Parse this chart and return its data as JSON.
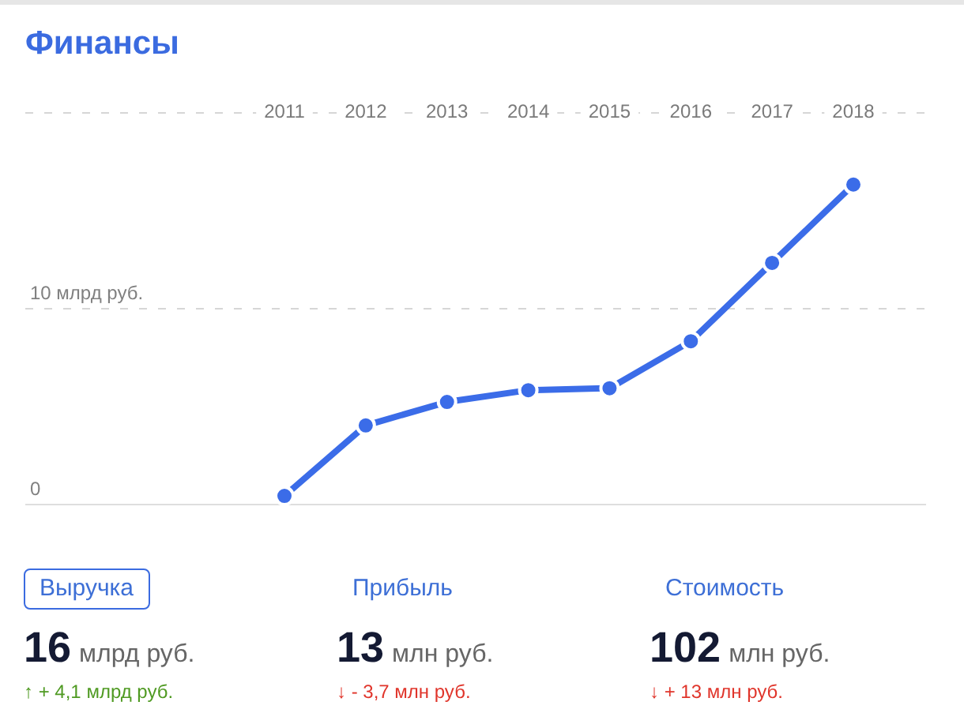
{
  "chart_data": {
    "type": "line",
    "title": "Финансы",
    "categories": [
      "2011",
      "2012",
      "2013",
      "2014",
      "2015",
      "2016",
      "2017",
      "2018"
    ],
    "series": [
      {
        "color": "#3b6ce8",
        "values": [
          0.4,
          4.0,
          5.2,
          5.8,
          5.9,
          8.3,
          12.3,
          16.3
        ]
      }
    ],
    "ylim": [
      0,
      20
    ],
    "yticks": [
      0,
      {
        "value": 10,
        "label": "10 млрд руб."
      },
      {
        "value": 20,
        "label": null
      }
    ],
    "grid": "y",
    "marker": "circle",
    "annotations": [
      "Выручка",
      "16 млрд руб.",
      "↑ + 4,1 млрд руб.",
      "Прибыль",
      "13 млн руб.",
      "↓ - 3,7 млн руб.",
      "Стоимость",
      "102 млн руб.",
      "↓ + 13 млн руб."
    ]
  }
}
